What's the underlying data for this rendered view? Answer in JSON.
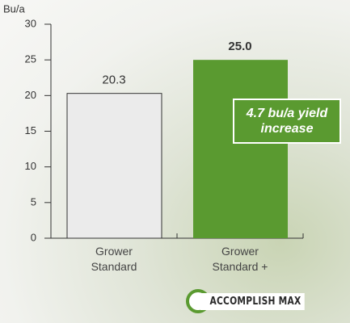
{
  "chart_data": {
    "type": "bar",
    "y_label": "Bu/a",
    "categories": [
      "Grower Standard",
      "Grower Standard +"
    ],
    "values": [
      20.3,
      25
    ],
    "value_labels": [
      "20.3",
      "25.0"
    ],
    "colors": [
      "#ebebeb",
      "#5a9a30"
    ],
    "ylim": [
      0,
      30
    ],
    "yticks": [
      0,
      5,
      10,
      15,
      20,
      25,
      30
    ],
    "annotation": "4.7 bu/a yield increase",
    "logo": "ACCOMPLISH MAX"
  }
}
